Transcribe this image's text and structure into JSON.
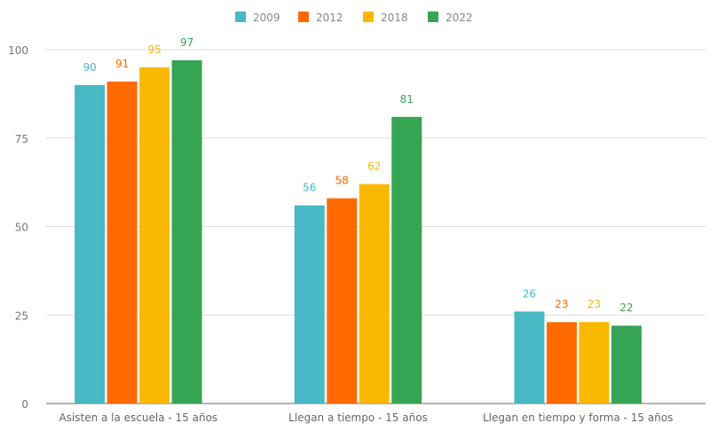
{
  "chart_data": {
    "type": "bar",
    "title": "",
    "xlabel": "",
    "ylabel": "",
    "categories": [
      "Asisten a la escuela - 15 años",
      "Llegan a tiempo - 15 años",
      "Llegan en tiempo y forma - 15 años"
    ],
    "series": [
      {
        "name": "2009",
        "values": [
          90,
          56,
          26
        ],
        "color": "#48b8c4"
      },
      {
        "name": "2012",
        "values": [
          91,
          58,
          23
        ],
        "color": "#ff6a00"
      },
      {
        "name": "2018",
        "values": [
          95,
          62,
          23
        ],
        "color": "#fbb800"
      },
      {
        "name": "2022",
        "values": [
          97,
          81,
          22
        ],
        "color": "#35a553"
      }
    ],
    "ylim": [
      0,
      100
    ],
    "yticks": [
      0,
      25,
      50,
      75,
      100
    ],
    "grid": true,
    "legend": "top-center",
    "data_labels": true
  }
}
